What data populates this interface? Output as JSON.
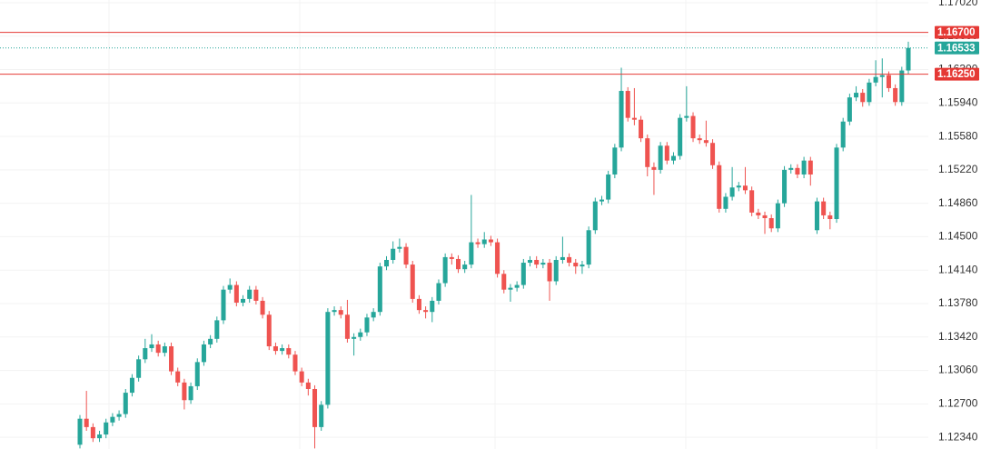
{
  "chart_data": {
    "type": "candlestick",
    "up_color": "#26a69a",
    "down_color": "#ef5350",
    "grid": true,
    "ylim": [
      1.12214,
      1.17049
    ],
    "yticks": [
      {
        "value": 1.1702,
        "label": "1.17020"
      },
      {
        "value": 1.1666,
        "label": "1.16660"
      },
      {
        "value": 1.163,
        "label": "1.16300"
      },
      {
        "value": 1.1594,
        "label": "1.15940"
      },
      {
        "value": 1.1558,
        "label": "1.15580"
      },
      {
        "value": 1.1522,
        "label": "1.15220"
      },
      {
        "value": 1.1486,
        "label": "1.14860"
      },
      {
        "value": 1.145,
        "label": "1.14500"
      },
      {
        "value": 1.1414,
        "label": "1.14140"
      },
      {
        "value": 1.1378,
        "label": "1.13780"
      },
      {
        "value": 1.1342,
        "label": "1.13420"
      },
      {
        "value": 1.1306,
        "label": "1.13060"
      },
      {
        "value": 1.127,
        "label": "1.12700"
      },
      {
        "value": 1.1234,
        "label": "1.12340"
      }
    ],
    "price_lines": [
      {
        "value": 1.167,
        "label": "1.16700",
        "color": "#e53935",
        "style": "solid"
      },
      {
        "value": 1.16533,
        "label": "1.16533",
        "color": "#26a69a",
        "style": "dotted"
      },
      {
        "value": 1.1625,
        "label": "1.16250",
        "color": "#e53935",
        "style": "solid"
      }
    ],
    "open": [
      1.1226,
      1.1254,
      1.1245,
      1.1233,
      1.1237,
      1.125,
      1.1256,
      1.1259,
      1.1282,
      1.1298,
      1.1318,
      1.133,
      1.1334,
      1.1325,
      1.1332,
      1.1305,
      1.1293,
      1.1274,
      1.1289,
      1.1315,
      1.1334,
      1.134,
      1.136,
      1.1393,
      1.1398,
      1.1379,
      1.1383,
      1.1393,
      1.1381,
      1.1366,
      1.1332,
      1.1327,
      1.133,
      1.1323,
      1.1305,
      1.1293,
      1.1286,
      1.1245,
      1.1269,
      1.1369,
      1.1371,
      1.1366,
      1.134,
      1.1342,
      1.1347,
      1.1363,
      1.1369,
      1.1418,
      1.1425,
      1.1437,
      1.1439,
      1.142,
      1.1383,
      1.1371,
      1.1369,
      1.1381,
      1.14,
      1.1428,
      1.1426,
      1.1415,
      1.142,
      1.1444,
      1.1442,
      1.1447,
      1.1444,
      1.141,
      1.1393,
      1.1395,
      1.1398,
      1.1422,
      1.1425,
      1.142,
      1.1422,
      1.1402,
      1.1425,
      1.1428,
      1.1422,
      1.1418,
      1.142,
      1.1457,
      1.1488,
      1.149,
      1.1517,
      1.1546,
      1.1607,
      1.1578,
      1.1576,
      1.1556,
      1.1525,
      1.1522,
      1.1548,
      1.1532,
      1.1537,
      1.1578,
      1.158,
      1.1556,
      1.1554,
      1.1551,
      1.1527,
      1.148,
      1.1493,
      1.1503,
      1.1505,
      1.15,
      1.1476,
      1.1473,
      1.147,
      1.1459,
      1.1486,
      1.1522,
      1.1524,
      1.1517,
      1.1532,
      1.1457,
      1.1488,
      1.1473,
      1.1469,
      1.1546,
      1.1574,
      1.16,
      1.1605,
      1.1595,
      1.1616,
      1.1622,
      1.1624,
      1.161,
      1.1595,
      1.1629
    ],
    "high": [
      1.1258,
      1.1284,
      1.1249,
      1.1241,
      1.1254,
      1.126,
      1.1263,
      1.1286,
      1.1302,
      1.1322,
      1.134,
      1.1345,
      1.1338,
      1.1336,
      1.1336,
      1.1309,
      1.1297,
      1.1293,
      1.1319,
      1.1338,
      1.1344,
      1.1364,
      1.1397,
      1.1405,
      1.1402,
      1.1387,
      1.1397,
      1.1397,
      1.1385,
      1.137,
      1.1336,
      1.1334,
      1.1334,
      1.1327,
      1.1309,
      1.1297,
      1.129,
      1.1273,
      1.1373,
      1.1375,
      1.1375,
      1.1382,
      1.1346,
      1.1351,
      1.1367,
      1.1373,
      1.1422,
      1.1429,
      1.1445,
      1.1448,
      1.1443,
      1.1424,
      1.1387,
      1.1375,
      1.1385,
      1.1404,
      1.1432,
      1.1432,
      1.143,
      1.1424,
      1.1495,
      1.1448,
      1.1455,
      1.1451,
      1.1448,
      1.1414,
      1.1399,
      1.1402,
      1.1426,
      1.1429,
      1.1429,
      1.1426,
      1.1426,
      1.1429,
      1.145,
      1.1432,
      1.1426,
      1.1424,
      1.1461,
      1.1492,
      1.1494,
      1.1521,
      1.155,
      1.1632,
      1.1611,
      1.161,
      1.158,
      1.156,
      1.153,
      1.1552,
      1.1552,
      1.1541,
      1.1582,
      1.1612,
      1.1584,
      1.156,
      1.1575,
      1.1555,
      1.1531,
      1.1497,
      1.1525,
      1.1509,
      1.1525,
      1.1504,
      1.148,
      1.1477,
      1.1474,
      1.149,
      1.1526,
      1.1528,
      1.1528,
      1.1536,
      1.1536,
      1.1492,
      1.1492,
      1.1477,
      1.155,
      1.1578,
      1.1604,
      1.1612,
      1.1609,
      1.162,
      1.164,
      1.1642,
      1.1628,
      1.1614,
      1.1633,
      1.166
    ],
    "low": [
      1.1222,
      1.1241,
      1.1229,
      1.1229,
      1.1233,
      1.1246,
      1.1252,
      1.1255,
      1.1278,
      1.1294,
      1.1314,
      1.1326,
      1.1321,
      1.1321,
      1.1301,
      1.1289,
      1.1264,
      1.127,
      1.1285,
      1.1311,
      1.133,
      1.1336,
      1.1356,
      1.1389,
      1.1375,
      1.1375,
      1.1379,
      1.1377,
      1.1362,
      1.1328,
      1.1323,
      1.1323,
      1.1319,
      1.1301,
      1.1289,
      1.1279,
      1.1222,
      1.1241,
      1.1265,
      1.1365,
      1.1362,
      1.1336,
      1.1322,
      1.1338,
      1.1343,
      1.1359,
      1.1365,
      1.1414,
      1.1421,
      1.1433,
      1.1416,
      1.1379,
      1.1367,
      1.1362,
      1.1358,
      1.1377,
      1.1396,
      1.142,
      1.1411,
      1.1411,
      1.1416,
      1.1438,
      1.1438,
      1.144,
      1.1406,
      1.1389,
      1.138,
      1.1391,
      1.1394,
      1.1418,
      1.1416,
      1.1416,
      1.1381,
      1.1398,
      1.1421,
      1.1418,
      1.141,
      1.141,
      1.1416,
      1.1453,
      1.1484,
      1.1486,
      1.1513,
      1.1542,
      1.1574,
      1.157,
      1.1552,
      1.1515,
      1.1495,
      1.1518,
      1.1528,
      1.1528,
      1.1533,
      1.1574,
      1.1552,
      1.155,
      1.1547,
      1.1523,
      1.1476,
      1.1476,
      1.1489,
      1.1499,
      1.1496,
      1.1472,
      1.1469,
      1.1453,
      1.1455,
      1.1455,
      1.1482,
      1.1518,
      1.1513,
      1.1513,
      1.1505,
      1.1453,
      1.1469,
      1.1458,
      1.1465,
      1.1542,
      1.157,
      1.1596,
      1.159,
      1.1591,
      1.1612,
      1.16,
      1.1606,
      1.1591,
      1.1591,
      1.1625
    ],
    "close": [
      1.1254,
      1.1245,
      1.1233,
      1.1237,
      1.125,
      1.1256,
      1.1259,
      1.1282,
      1.1298,
      1.1318,
      1.133,
      1.1334,
      1.1325,
      1.1332,
      1.1305,
      1.1293,
      1.1274,
      1.1289,
      1.1315,
      1.1334,
      1.134,
      1.136,
      1.1393,
      1.1398,
      1.1379,
      1.1383,
      1.1393,
      1.1381,
      1.1366,
      1.1332,
      1.1327,
      1.133,
      1.1323,
      1.1305,
      1.1293,
      1.1286,
      1.1245,
      1.1269,
      1.1369,
      1.1371,
      1.1366,
      1.134,
      1.1342,
      1.1347,
      1.1363,
      1.1369,
      1.1418,
      1.1425,
      1.1437,
      1.1439,
      1.142,
      1.1383,
      1.1371,
      1.1369,
      1.1381,
      1.14,
      1.1428,
      1.1426,
      1.1415,
      1.142,
      1.1444,
      1.1442,
      1.1447,
      1.1444,
      1.141,
      1.1393,
      1.1395,
      1.1398,
      1.1422,
      1.1425,
      1.142,
      1.1422,
      1.1402,
      1.1425,
      1.1428,
      1.1422,
      1.1418,
      1.142,
      1.1457,
      1.1488,
      1.149,
      1.1517,
      1.1546,
      1.1607,
      1.1578,
      1.1576,
      1.1556,
      1.1525,
      1.1522,
      1.1548,
      1.1532,
      1.1537,
      1.1578,
      1.158,
      1.1556,
      1.1554,
      1.1551,
      1.1527,
      1.148,
      1.1493,
      1.1503,
      1.1505,
      1.15,
      1.1476,
      1.1473,
      1.147,
      1.1459,
      1.1486,
      1.1522,
      1.1524,
      1.1517,
      1.1532,
      1.1517,
      1.1488,
      1.1473,
      1.1469,
      1.1546,
      1.1574,
      1.16,
      1.1605,
      1.1595,
      1.1616,
      1.1622,
      1.1624,
      1.161,
      1.1595,
      1.1629,
      1.16533
    ]
  }
}
